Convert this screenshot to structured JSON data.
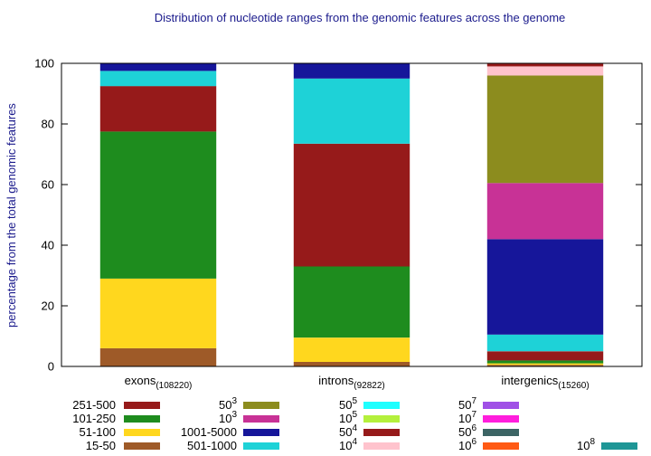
{
  "chart_data": {
    "type": "bar",
    "stacked": true,
    "title": "Distribution of nucleotide ranges from the genomic features across the genome",
    "ylabel": "percentage from the total genomic features",
    "xlabel": "",
    "ylim": [
      0,
      100
    ],
    "yticks": [
      "0",
      "20",
      "40",
      "60",
      "80",
      "100"
    ],
    "grid": false,
    "legend_position": "bottom",
    "categories": [
      {
        "name": "exons",
        "sub": "(108220)"
      },
      {
        "name": "introns",
        "sub": "(92822)"
      },
      {
        "name": "intergenics",
        "sub": "(15260)"
      }
    ],
    "series": [
      {
        "key": "15-50",
        "color": "#9e5a28",
        "values": [
          6,
          1.5,
          0.5
        ]
      },
      {
        "key": "51-100",
        "color": "#ffd71e",
        "values": [
          23,
          8,
          0.5
        ]
      },
      {
        "key": "101-250",
        "color": "#1e8c1e",
        "values": [
          48.5,
          23.5,
          1
        ]
      },
      {
        "key": "251-500",
        "color": "#961a1a",
        "values": [
          15,
          40.5,
          3
        ]
      },
      {
        "key": "501-1000",
        "color": "#1ed2d7",
        "values": [
          5,
          21.5,
          5.5
        ]
      },
      {
        "key": "1001-5000",
        "color": "#16169a",
        "values": [
          2.5,
          5,
          31.5
        ]
      },
      {
        "key": "10^3",
        "color": "#c83296",
        "values": [
          0,
          0,
          18.5
        ]
      },
      {
        "key": "50^3",
        "color": "#8c8c1e",
        "values": [
          0,
          0,
          35.5
        ]
      },
      {
        "key": "10^4",
        "color": "#ffc3cd",
        "values": [
          0,
          0,
          3
        ]
      },
      {
        "key": "50^4",
        "color": "#961a1a",
        "values": [
          0,
          0,
          1
        ]
      }
    ],
    "legend": {
      "columns": [
        [
          {
            "base": "251-500",
            "sup": "",
            "color": "#961a1a"
          },
          {
            "base": "101-250",
            "sup": "",
            "color": "#1e8c1e"
          },
          {
            "base": "51-100",
            "sup": "",
            "color": "#ffd71e"
          },
          {
            "base": "15-50",
            "sup": "",
            "color": "#9e5a28"
          }
        ],
        [
          {
            "base": "50",
            "sup": "3",
            "color": "#8c8c1e"
          },
          {
            "base": "10",
            "sup": "3",
            "color": "#c83296"
          },
          {
            "base": "1001-5000",
            "sup": "",
            "color": "#16169a"
          },
          {
            "base": "501-1000",
            "sup": "",
            "color": "#1ed2d7"
          }
        ],
        [
          {
            "base": "50",
            "sup": "5",
            "color": "#1effff"
          },
          {
            "base": "10",
            "sup": "5",
            "color": "#b4f03c"
          },
          {
            "base": "50",
            "sup": "4",
            "color": "#961a1a"
          },
          {
            "base": "10",
            "sup": "4",
            "color": "#ffc3cd"
          }
        ],
        [
          {
            "base": "50",
            "sup": "7",
            "color": "#a050e6"
          },
          {
            "base": "10",
            "sup": "7",
            "color": "#ff1edc"
          },
          {
            "base": "50",
            "sup": "6",
            "color": "#3c6464"
          },
          {
            "base": "10",
            "sup": "6",
            "color": "#ff5a14"
          }
        ],
        [
          {
            "base": "10",
            "sup": "8",
            "color": "#1e9696"
          }
        ]
      ]
    }
  }
}
